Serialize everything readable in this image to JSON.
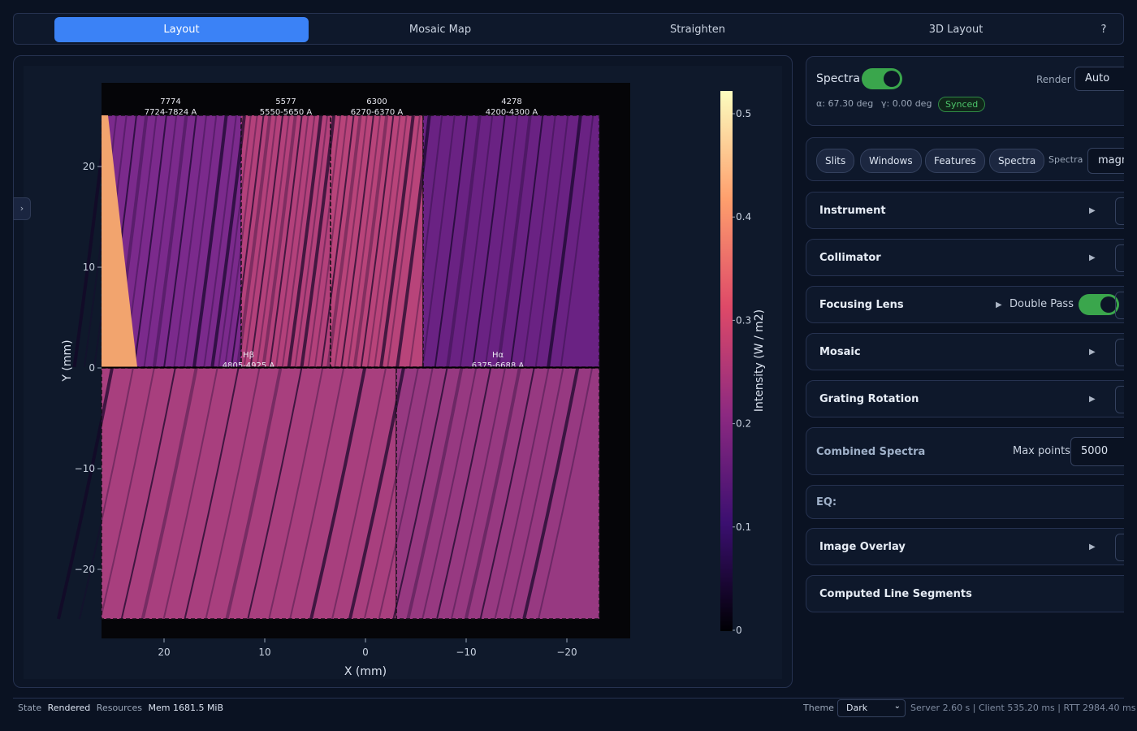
{
  "tabs": [
    "Layout",
    "Mosaic Map",
    "Straighten",
    "3D Layout",
    "?"
  ],
  "plot": {
    "panels": [
      {
        "label": "7774",
        "range": "7724-7824 A"
      },
      {
        "label": "5577",
        "range": "5550-5650 A"
      },
      {
        "label": "6300",
        "range": "6270-6370 A"
      },
      {
        "label": "4278",
        "range": "4200-4300 A"
      },
      {
        "label": "Hβ",
        "range": "4805-4925 A"
      },
      {
        "label": "Hα",
        "range": "6375-6688 A"
      }
    ],
    "x_axis": {
      "label": "X (mm)",
      "ticks": [
        "20",
        "10",
        "0",
        "−10",
        "−20"
      ]
    },
    "y_axis": {
      "label": "Y (mm)",
      "ticks": [
        "20",
        "10",
        "0",
        "−10",
        "−20"
      ]
    },
    "colorbar": {
      "label": "Intensity (W / m2)",
      "ticks": [
        "0.5",
        "0.4",
        "0.3",
        "0.2",
        "0.1",
        "0"
      ]
    }
  },
  "side": {
    "spectra_toggle": "Spectra",
    "render_label": "Render",
    "render_value": "Auto",
    "alpha": "α: 67.30 deg",
    "gamma": "γ: 0.00 deg",
    "synced": "Synced",
    "buttons": [
      "Slits",
      "Windows",
      "Features",
      "Spectra"
    ],
    "spectra_select_label": "Spectra",
    "spectra_select_value": "magn",
    "sections": [
      "Instrument",
      "Collimator",
      "Focusing Lens",
      "Mosaic",
      "Grating Rotation"
    ],
    "double_pass": "Double Pass",
    "combined_spectra": "Combined Spectra",
    "max_points_label": "Max points",
    "max_points_value": "5000",
    "eq": "EQ:",
    "image_overlay": "Image Overlay",
    "computed_line_segments": "Computed Line Segments"
  },
  "status": {
    "state_label": "State",
    "state": "Rendered",
    "resources_label": "Resources",
    "mem": "Mem 1681.5 MiB",
    "theme_label": "Theme",
    "theme": "Dark",
    "timing": "Server 2.60 s | Client 535.20 ms | RTT 2984.40 ms"
  }
}
